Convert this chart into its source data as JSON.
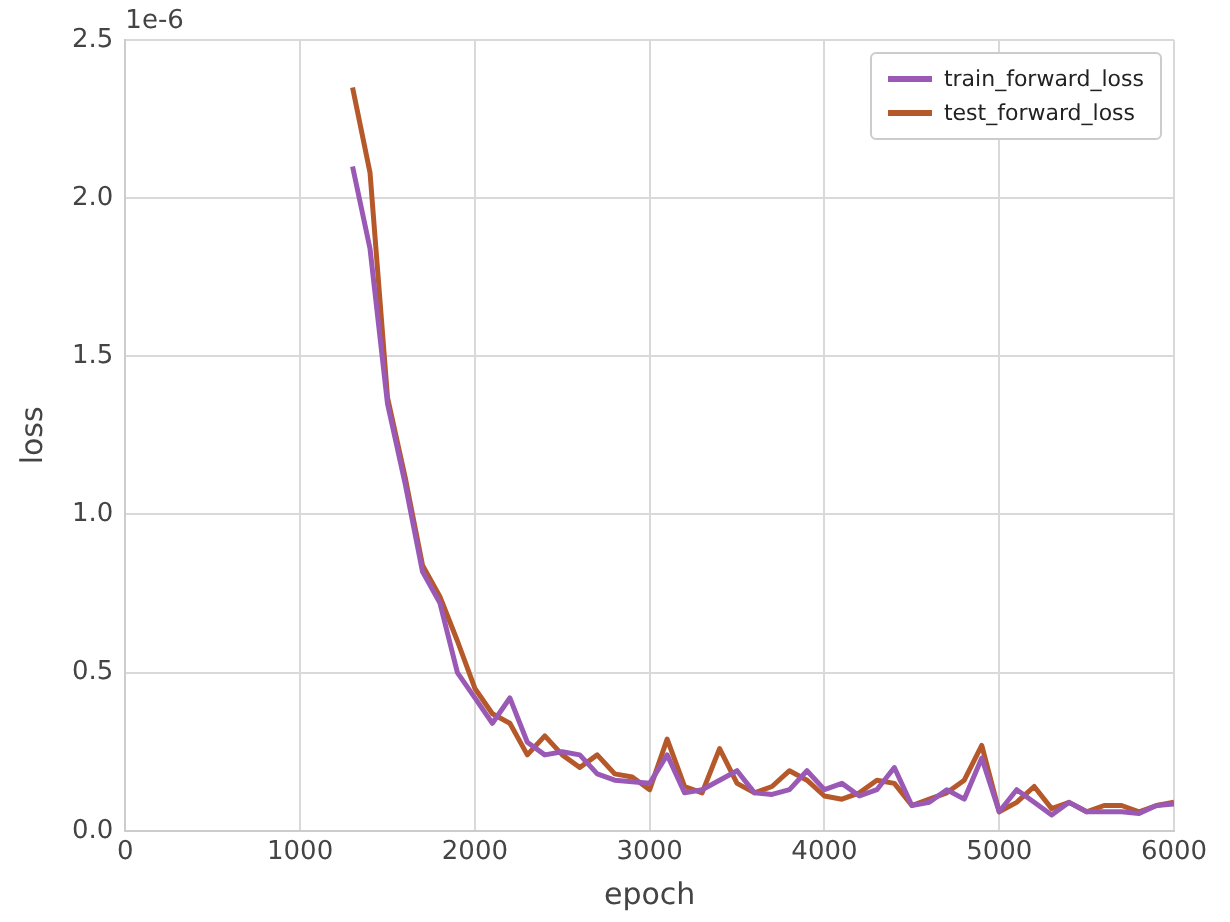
{
  "chart_data": {
    "type": "line",
    "xlabel": "epoch",
    "ylabel": "loss",
    "annotations": [
      "1e-6"
    ],
    "x": [
      1300,
      1400,
      1500,
      1600,
      1700,
      1800,
      1900,
      2000,
      2100,
      2200,
      2300,
      2400,
      2500,
      2600,
      2700,
      2800,
      2900,
      3000,
      3100,
      3200,
      3300,
      3400,
      3500,
      3600,
      3700,
      3800,
      3900,
      4000,
      4100,
      4200,
      4300,
      4400,
      4500,
      4600,
      4700,
      4800,
      4900,
      5000,
      5100,
      5200,
      5300,
      5400,
      5500,
      5600,
      5700,
      5800,
      5900,
      6000
    ],
    "series": [
      {
        "name": "train_forward_loss",
        "color": "#9b59b6",
        "values": [
          2.1,
          1.84,
          1.35,
          1.1,
          0.82,
          0.72,
          0.5,
          0.42,
          0.34,
          0.42,
          0.28,
          0.24,
          0.25,
          0.24,
          0.18,
          0.16,
          0.155,
          0.15,
          0.24,
          0.12,
          0.13,
          0.16,
          0.19,
          0.12,
          0.115,
          0.13,
          0.19,
          0.13,
          0.15,
          0.11,
          0.13,
          0.2,
          0.08,
          0.09,
          0.13,
          0.1,
          0.23,
          0.06,
          0.13,
          0.09,
          0.05,
          0.09,
          0.06,
          0.06,
          0.06,
          0.055,
          0.08,
          0.085
        ]
      },
      {
        "name": "test_forward_loss",
        "color": "#b5592b",
        "values": [
          2.35,
          2.08,
          1.37,
          1.12,
          0.84,
          0.74,
          0.6,
          0.45,
          0.37,
          0.34,
          0.24,
          0.3,
          0.24,
          0.2,
          0.24,
          0.18,
          0.17,
          0.13,
          0.29,
          0.14,
          0.12,
          0.26,
          0.15,
          0.12,
          0.14,
          0.19,
          0.16,
          0.11,
          0.1,
          0.12,
          0.16,
          0.15,
          0.08,
          0.1,
          0.12,
          0.16,
          0.27,
          0.06,
          0.09,
          0.14,
          0.07,
          0.09,
          0.06,
          0.08,
          0.08,
          0.06,
          0.08,
          0.09
        ]
      }
    ],
    "xlim": [
      0,
      6000
    ],
    "xticks": [
      0,
      1000,
      2000,
      3000,
      4000,
      5000,
      6000
    ],
    "ylim": [
      0,
      2.5
    ],
    "yticks": [
      {
        "value": 0,
        "label": "0.0"
      },
      {
        "value": 0.5,
        "label": "0.5"
      },
      {
        "value": 1,
        "label": "1.0"
      },
      {
        "value": 1.5,
        "label": "1.5"
      },
      {
        "value": 2,
        "label": "2.0"
      },
      {
        "value": 2.5,
        "label": "2.5"
      }
    ],
    "grid": true,
    "legend": "top right",
    "marker": "none",
    "line_style": "solid"
  }
}
